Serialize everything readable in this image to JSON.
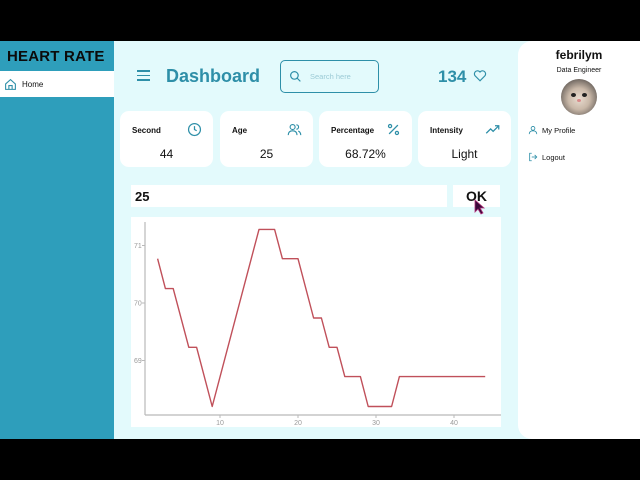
{
  "sidebar": {
    "brand": "HEART RATE",
    "items": [
      {
        "label": "Home",
        "icon": "home-icon",
        "active": true
      }
    ]
  },
  "header": {
    "title": "Dashboard",
    "search_placeholder": "Search here",
    "bpm_value": "134",
    "bpm_icon": "heart-icon"
  },
  "cards": [
    {
      "label": "Second",
      "value": "44",
      "icon": "clock-icon"
    },
    {
      "label": "Age",
      "value": "25",
      "icon": "users-icon"
    },
    {
      "label": "Percentage",
      "value": "68.72%",
      "icon": "percent-icon"
    },
    {
      "label": "Intensity",
      "value": "Light",
      "icon": "trending-up-icon"
    }
  ],
  "age_input": {
    "value": "25"
  },
  "ok_button": {
    "label": "OK"
  },
  "profile": {
    "name": "febrilym",
    "role": "Data Engineer",
    "menu": [
      {
        "label": "My Profile",
        "icon": "user-icon"
      },
      {
        "label": "Logout",
        "icon": "logout-icon"
      }
    ]
  },
  "colors": {
    "sidebar": "#2e9ebb",
    "accent": "#2e8fa8",
    "background": "#e3fafc",
    "line": "#c0505a"
  },
  "chart_data": {
    "type": "line",
    "title": "",
    "xlabel": "",
    "ylabel": "",
    "x_ticks": [
      10,
      20,
      30,
      40
    ],
    "y_ticks": [
      69,
      70,
      71
    ],
    "xlim": [
      0,
      46
    ],
    "ylim": [
      68.0,
      71.5
    ],
    "grid": false,
    "series": [
      {
        "name": "heart rate",
        "color": "#c0505a",
        "x": [
          2,
          3,
          4,
          6,
          7,
          9,
          15,
          17,
          18,
          20,
          22,
          23,
          24,
          25,
          26,
          28,
          29,
          32,
          33,
          44
        ],
        "y": [
          70.77,
          70.25,
          70.25,
          69.23,
          69.23,
          68.2,
          71.28,
          71.28,
          70.77,
          70.77,
          69.74,
          69.74,
          69.23,
          69.23,
          68.72,
          68.72,
          68.2,
          68.2,
          68.72,
          68.72
        ]
      }
    ]
  }
}
